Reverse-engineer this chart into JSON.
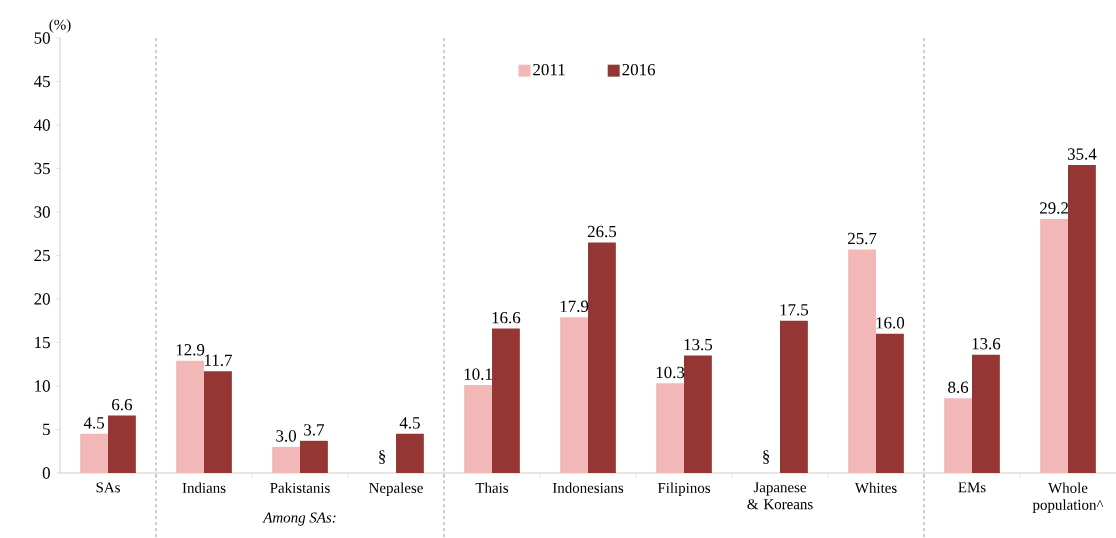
{
  "chart_data": {
    "type": "bar",
    "ylabel": "(%)",
    "categories": [
      "SAs",
      "Indians",
      "Pakistanis",
      "Nepalese",
      "Thais",
      "Indonesians",
      "Filipinos",
      "Japanese & Koreans",
      "Whites",
      "EMs",
      "Whole population^"
    ],
    "series": [
      {
        "name": "2011",
        "color": "#f2b8b8",
        "values": [
          4.5,
          12.9,
          3.0,
          null,
          10.1,
          17.9,
          10.3,
          null,
          25.7,
          8.6,
          29.2
        ],
        "value_labels": [
          "4.5",
          "12.9",
          "3.0",
          null,
          "10.1",
          "17.9",
          "10.3",
          null,
          "25.7",
          "8.6",
          "29.2"
        ]
      },
      {
        "name": "2016",
        "color": "#943634",
        "values": [
          6.6,
          11.7,
          3.7,
          4.5,
          16.6,
          26.5,
          13.5,
          17.5,
          16.0,
          13.6,
          35.4
        ],
        "value_labels": [
          "6.6",
          "11.7",
          "3.7",
          "4.5",
          "16.6",
          "26.5",
          "13.5",
          "17.5",
          "16.0",
          "13.6",
          "35.4"
        ]
      }
    ],
    "ylim": [
      0,
      50
    ],
    "yticks": [
      0,
      5,
      10,
      15,
      20,
      25,
      30,
      35,
      40,
      45,
      50
    ],
    "annotations": [
      "Among SAs:",
      {
        "text": "§",
        "x": "Nepalese",
        "y": 0
      },
      {
        "text": "§",
        "x": "Japanese & Koreans",
        "y": 0
      }
    ],
    "legend": "top",
    "grid": false
  }
}
